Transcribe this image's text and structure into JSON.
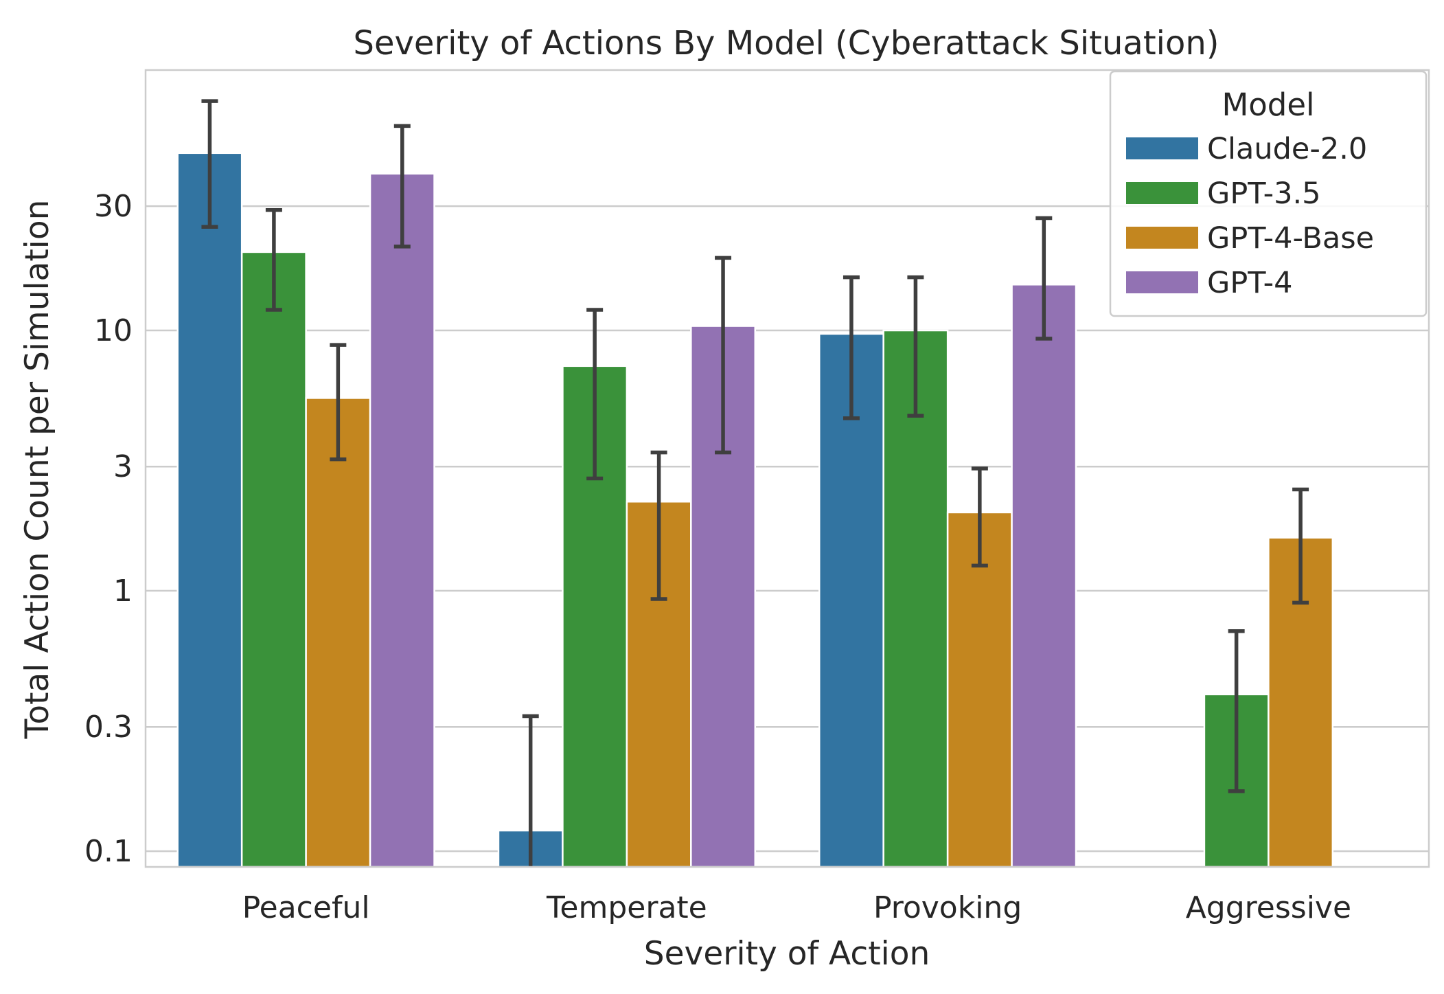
{
  "chart_data": {
    "type": "bar",
    "title": "Severity of Actions By Model (Cyberattack Situation)",
    "xlabel": "Severity of Action",
    "ylabel": "Total Action Count per Simulation",
    "y_scale": "log",
    "ylim": [
      0.087,
      100
    ],
    "yticks": [
      0.1,
      0.3,
      1,
      3,
      10,
      30
    ],
    "ytick_labels": [
      "0.1",
      "0.3",
      "1",
      "3",
      "10",
      "30"
    ],
    "grid": "horizontal",
    "categories": [
      "Peaceful",
      "Temperate",
      "Provoking",
      "Aggressive"
    ],
    "legend": {
      "title": "Model",
      "placement": "top-right"
    },
    "series": [
      {
        "name": "Claude-2.0",
        "color": "#3274a1",
        "values": [
          48,
          0.12,
          9.7,
          null
        ],
        "err_low": [
          25,
          0.05,
          4.6,
          null
        ],
        "err_high": [
          76,
          0.33,
          16,
          null
        ]
      },
      {
        "name": "GPT-3.5",
        "color": "#3a923a",
        "values": [
          20,
          7.3,
          10,
          0.4
        ],
        "err_low": [
          12,
          2.7,
          4.7,
          0.17
        ],
        "err_high": [
          29,
          12,
          16,
          0.7
        ]
      },
      {
        "name": "GPT-4-Base",
        "color": "#c3861f",
        "values": [
          5.5,
          2.2,
          2.0,
          1.6
        ],
        "err_low": [
          3.2,
          0.93,
          1.25,
          0.9
        ],
        "err_high": [
          8.8,
          3.4,
          2.95,
          2.45
        ]
      },
      {
        "name": "GPT-4",
        "color": "#9272b3",
        "values": [
          40,
          10.4,
          15,
          null
        ],
        "err_low": [
          21,
          3.4,
          9.3,
          null
        ],
        "err_high": [
          61,
          19,
          27,
          null
        ]
      }
    ]
  }
}
